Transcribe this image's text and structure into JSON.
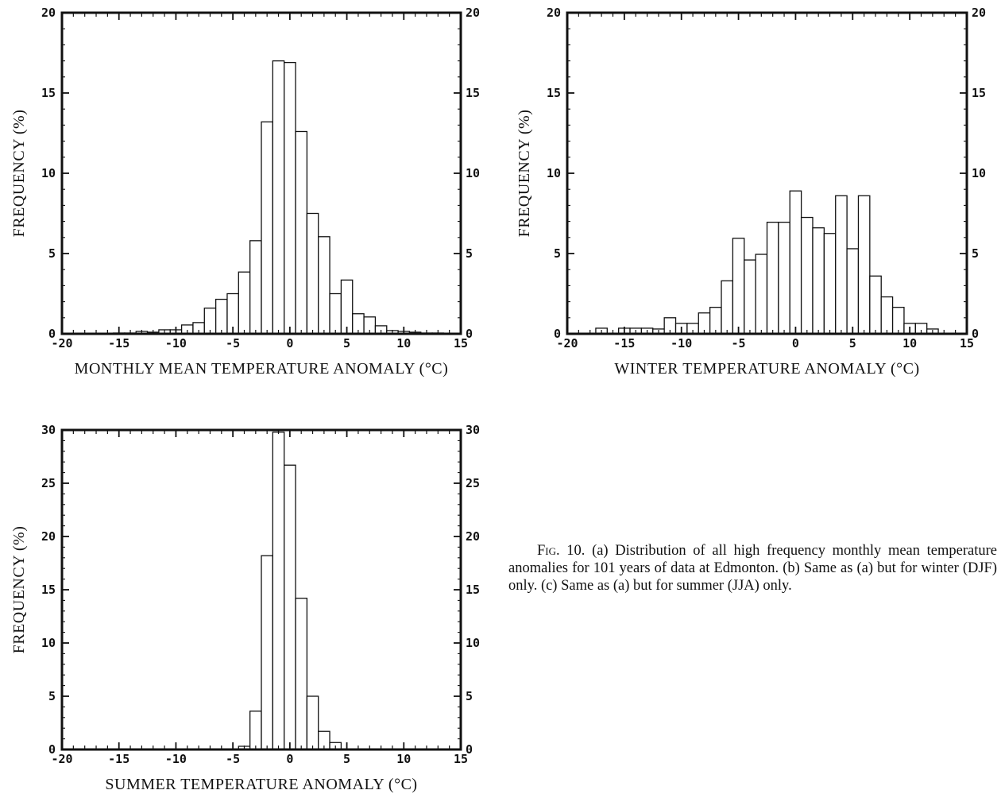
{
  "chart_data": [
    {
      "type": "bar",
      "xlabel": "MONTHLY MEAN TEMPERATURE ANOMALY (°C)",
      "ylabel": "FREQUENCY (%)",
      "xlim": [
        -20,
        15
      ],
      "ylim": [
        0,
        20
      ],
      "xticks": [
        "-20",
        "-15",
        "-10",
        "-5",
        "0",
        "5",
        "10",
        "15"
      ],
      "yticks": [
        "0",
        "5",
        "10",
        "15",
        "20"
      ],
      "bin_width": 1,
      "x": [
        -15,
        -14,
        -13,
        -12,
        -11,
        -10,
        -9,
        -8,
        -7,
        -6,
        -5,
        -4,
        -3,
        -2,
        -1,
        0,
        1,
        2,
        3,
        4,
        5,
        6,
        7,
        8,
        9,
        10,
        11,
        12,
        13
      ],
      "values": [
        0.05,
        0.05,
        0.15,
        0.1,
        0.25,
        0.25,
        0.55,
        0.7,
        1.6,
        2.15,
        2.5,
        3.85,
        5.8,
        13.2,
        17.0,
        16.9,
        12.6,
        7.5,
        6.05,
        2.5,
        3.35,
        1.25,
        1.05,
        0.5,
        0.2,
        0.15,
        0.1,
        0.05,
        0.05
      ]
    },
    {
      "type": "bar",
      "xlabel": "WINTER TEMPERATURE ANOMALY (°C)",
      "ylabel": "FREQUENCY (%)",
      "xlim": [
        -20,
        15
      ],
      "ylim": [
        0,
        20
      ],
      "xticks": [
        "-20",
        "-15",
        "-10",
        "-5",
        "0",
        "5",
        "10",
        "15"
      ],
      "yticks": [
        "0",
        "5",
        "10",
        "15",
        "20"
      ],
      "bin_width": 1,
      "x": [
        -17,
        -16,
        -15,
        -14,
        -13,
        -12,
        -11,
        -10,
        -9,
        -8,
        -7,
        -6,
        -5,
        -4,
        -3,
        -2,
        -1,
        0,
        1,
        2,
        3,
        4,
        5,
        6,
        7,
        8,
        9,
        10,
        11,
        12
      ],
      "values": [
        0.35,
        0.0,
        0.35,
        0.35,
        0.35,
        0.3,
        1.0,
        0.65,
        0.65,
        1.3,
        1.65,
        3.3,
        5.95,
        4.6,
        4.95,
        6.95,
        6.95,
        8.9,
        7.25,
        6.6,
        6.25,
        8.6,
        5.3,
        8.6,
        3.6,
        2.3,
        1.65,
        0.65,
        0.65,
        0.3
      ]
    },
    {
      "type": "bar",
      "xlabel": "SUMMER TEMPERATURE ANOMALY (°C)",
      "ylabel": "FREQUENCY (%)",
      "xlim": [
        -20,
        15
      ],
      "ylim": [
        0,
        30
      ],
      "xticks": [
        "-20",
        "-15",
        "-10",
        "-5",
        "0",
        "5",
        "10",
        "15"
      ],
      "yticks": [
        "0",
        "5",
        "10",
        "15",
        "20",
        "25",
        "30"
      ],
      "bin_width": 1,
      "x": [
        -4,
        -3,
        -2,
        -1,
        0,
        1,
        2,
        3,
        4,
        5
      ],
      "values": [
        0.3,
        3.6,
        18.2,
        29.8,
        26.7,
        14.2,
        5.0,
        1.7,
        0.65,
        0.0
      ]
    }
  ],
  "caption": {
    "label": "Fig. 10.",
    "text": "(a) Distribution of all high frequency monthly mean temperature anomalies for 101 years of data at Edmonton. (b) Same as (a) but for winter (DJF) only. (c) Same as (a) but for summer (JJA) only."
  },
  "colors": {
    "ink": "#111111",
    "bar_fill": "#ffffff",
    "background": "#ffffff"
  }
}
